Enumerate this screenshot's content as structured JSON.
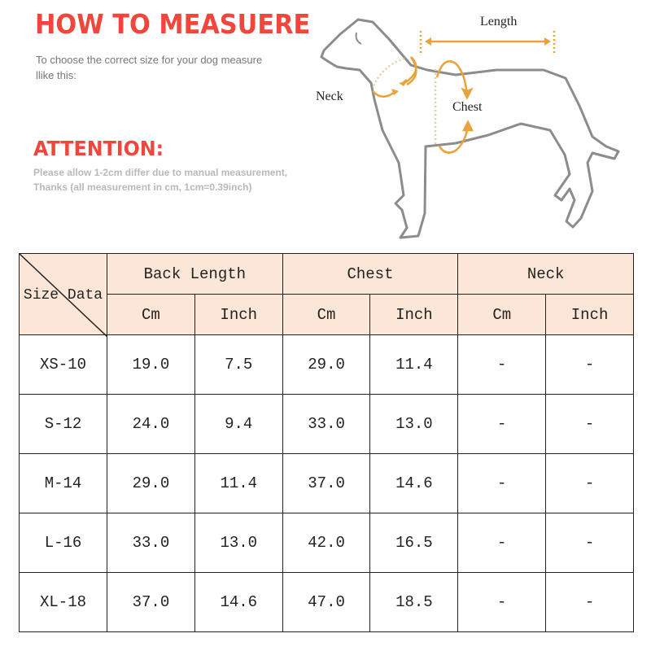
{
  "header": {
    "title": "HOW TO MEASUERE",
    "intro": "To choose the correct size for your dog measure llike this:",
    "attention_title": "ATTENTION:",
    "attention_line1": "Please allow 1-2cm differ due to manual measurement,",
    "attention_line2": "Thanks (all measurement in cm, 1cm=0.39inch)"
  },
  "diagram": {
    "length_label": "Length",
    "neck_label": "Neck",
    "chest_label": "Chest",
    "arrow_color": "#e8a33a",
    "outline_color": "#8c8c8c"
  },
  "table": {
    "corner_label": "Size Data",
    "groups": [
      "Back Length",
      "Chest",
      "Neck"
    ],
    "units": [
      "Cm",
      "Inch",
      "Cm",
      "Inch",
      "Cm",
      "Inch"
    ],
    "header_bg": "#fce6d8",
    "rows": [
      {
        "size": "XS-10",
        "values": [
          "19.0",
          "7.5",
          "29.0",
          "11.4",
          "-",
          "-"
        ]
      },
      {
        "size": "S-12",
        "values": [
          "24.0",
          "9.4",
          "33.0",
          "13.0",
          "-",
          "-"
        ]
      },
      {
        "size": "M-14",
        "values": [
          "29.0",
          "11.4",
          "37.0",
          "14.6",
          "-",
          "-"
        ]
      },
      {
        "size": "L-16",
        "values": [
          "33.0",
          "13.0",
          "42.0",
          "16.5",
          "-",
          "-"
        ]
      },
      {
        "size": "XL-18",
        "values": [
          "37.0",
          "14.6",
          "47.0",
          "18.5",
          "-",
          "-"
        ]
      }
    ]
  }
}
